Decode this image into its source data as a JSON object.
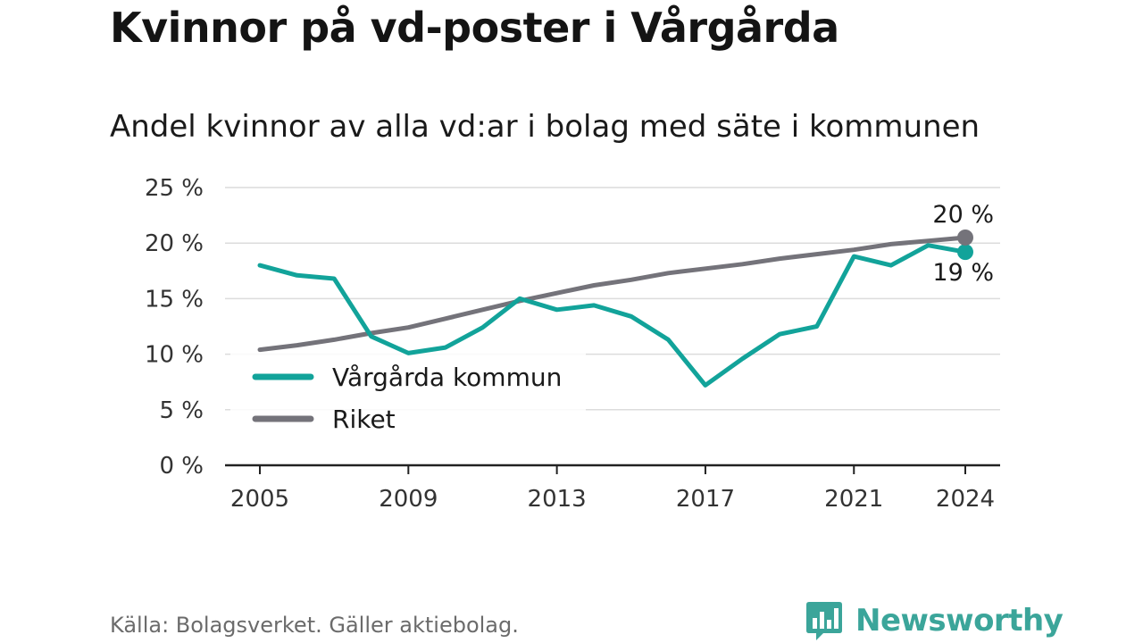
{
  "title": "Kvinnor på vd-poster i Vårgårda",
  "subtitle": "Andel kvinnor av alla vd:ar i bolag med säte i kommunen",
  "source": "Källa: Bolagsverket. Gäller aktiebolag.",
  "brand": "Newsworthy",
  "icons": {
    "brand_logo": "bar-chart-speech-bubble-icon"
  },
  "chart_data": {
    "type": "line",
    "title": "Kvinnor på vd-poster i Vårgårda",
    "subtitle": "Andel kvinnor av alla vd:ar i bolag med säte i kommunen",
    "x": [
      2005,
      2006,
      2007,
      2008,
      2009,
      2010,
      2011,
      2012,
      2013,
      2014,
      2015,
      2016,
      2017,
      2018,
      2019,
      2020,
      2021,
      2022,
      2023,
      2024
    ],
    "xticks": [
      "2005",
      "2009",
      "2013",
      "2017",
      "2021",
      "2024"
    ],
    "yticks": [
      "0 %",
      "5 %",
      "10 %",
      "15 %",
      "20 %",
      "25 %"
    ],
    "ylim": [
      0,
      25
    ],
    "grid": true,
    "legend_placement": "lower-left",
    "series": [
      {
        "name": "Vårgårda kommun",
        "color": "#12a39a",
        "values": [
          18.0,
          17.1,
          16.8,
          11.6,
          10.1,
          10.6,
          12.4,
          15.0,
          14.0,
          14.4,
          13.4,
          11.3,
          7.2,
          9.6,
          11.8,
          12.5,
          18.8,
          18.0,
          19.8,
          19.2
        ],
        "end_label": "19 %"
      },
      {
        "name": "Riket",
        "color": "#74737a",
        "values": [
          10.4,
          10.8,
          11.3,
          11.9,
          12.4,
          13.2,
          14.0,
          14.8,
          15.5,
          16.2,
          16.7,
          17.3,
          17.7,
          18.1,
          18.6,
          19.0,
          19.4,
          19.9,
          20.2,
          20.5
        ],
        "end_label": "20 %"
      }
    ]
  }
}
